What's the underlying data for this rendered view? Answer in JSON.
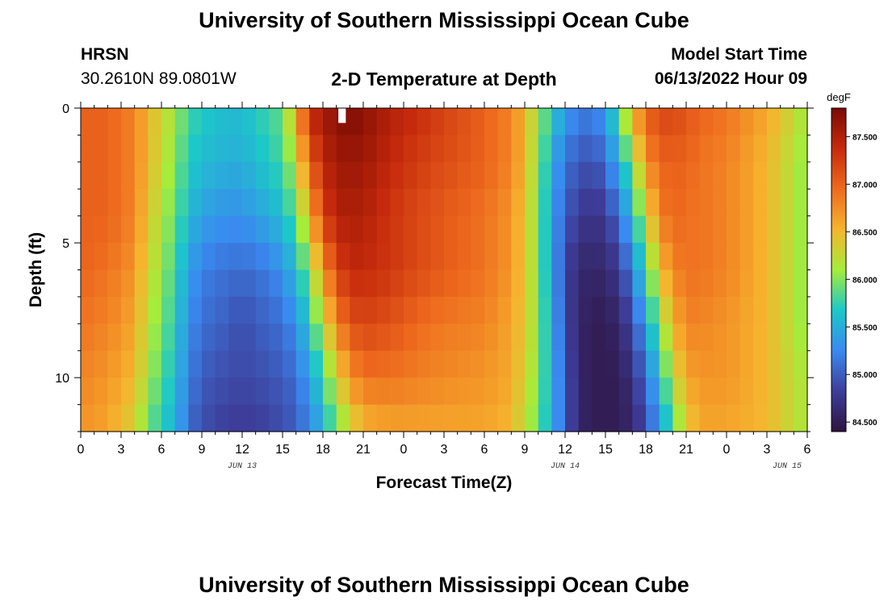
{
  "header": {
    "title": "University of Southern Mississippi Ocean Cube",
    "station": "HRSN",
    "coords": "30.2610N  89.0801W",
    "plot_title": "2-D Temperature at Depth",
    "start_label": "Model Start Time",
    "start_value": "06/13/2022 Hour 09"
  },
  "footer": {
    "title": "University of Southern Mississippi Ocean Cube"
  },
  "chart_data": {
    "type": "heatmap",
    "title": "2-D Temperature at Depth",
    "xlabel": "Forecast Time(Z)",
    "ylabel": "Depth (ft)",
    "x_tick_labels": [
      "0",
      "3",
      "6",
      "9",
      "12",
      "15",
      "18",
      "21",
      "0",
      "3",
      "6",
      "9",
      "12",
      "15",
      "18",
      "21",
      "0",
      "3",
      "6"
    ],
    "date_labels": [
      {
        "label": "JUN 13",
        "at_tick": 4
      },
      {
        "label": "JUN 14",
        "at_tick": 12
      },
      {
        "label": "JUN 15",
        "at_tick": 17.5
      }
    ],
    "y_ticks": [
      0,
      5,
      10
    ],
    "ylim": [
      0,
      12
    ],
    "y_inverted": true,
    "colorbar": {
      "unit": "degF",
      "min": 84.4,
      "max": 87.8,
      "tick_values": [
        84.5,
        85.0,
        85.5,
        86.0,
        86.5,
        87.0,
        87.5
      ],
      "tick_labels": [
        "84.500",
        "85.000",
        "85.500",
        "86.000",
        "86.500",
        "87.000",
        "87.500"
      ],
      "colors": [
        "#2e1440",
        "#3e3d9a",
        "#3a8af0",
        "#1cc8c8",
        "#a6ec3a",
        "#f6b42e",
        "#ee6a1e",
        "#c62a0c",
        "#7a0a04"
      ]
    },
    "hours_range": [
      0,
      54
    ],
    "depth_levels": [
      0,
      1,
      2,
      3,
      4,
      5,
      6,
      7,
      8,
      9,
      10,
      11
    ],
    "profile_hours": [
      0,
      2,
      4,
      5,
      7,
      8,
      9,
      11,
      12,
      13,
      15,
      16,
      17,
      18,
      19,
      20,
      21,
      23,
      26,
      30,
      32,
      33,
      34,
      35,
      36,
      37,
      38,
      39,
      40,
      41,
      42,
      43,
      44,
      45,
      46,
      48,
      51,
      54
    ],
    "profiles": [
      {
        "depth": 0,
        "values": [
          87.0,
          87.0,
          86.8,
          86.5,
          86.1,
          85.8,
          85.7,
          85.6,
          85.6,
          85.7,
          85.9,
          86.6,
          87.4,
          87.6,
          87.7,
          87.8,
          87.7,
          87.5,
          87.3,
          87.0,
          86.8,
          86.5,
          86.1,
          85.7,
          85.4,
          85.2,
          85.2,
          85.4,
          85.9,
          86.6,
          87.0,
          87.2,
          87.2,
          87.1,
          87.0,
          86.9,
          86.6,
          86.1
        ]
      },
      {
        "depth": 2,
        "values": [
          87.0,
          87.0,
          86.8,
          86.5,
          86.0,
          85.7,
          85.6,
          85.5,
          85.5,
          85.6,
          85.8,
          86.2,
          87.0,
          87.4,
          87.6,
          87.6,
          87.6,
          87.4,
          87.2,
          87.0,
          86.8,
          86.5,
          86.0,
          85.5,
          85.1,
          85.0,
          84.9,
          85.1,
          85.5,
          86.0,
          86.7,
          87.0,
          87.0,
          87.0,
          86.9,
          86.8,
          86.5,
          86.0
        ]
      },
      {
        "depth": 4,
        "values": [
          87.0,
          87.0,
          86.8,
          86.4,
          85.9,
          85.6,
          85.4,
          85.3,
          85.3,
          85.4,
          85.6,
          85.9,
          86.5,
          87.2,
          87.5,
          87.5,
          87.5,
          87.3,
          87.1,
          86.9,
          86.7,
          86.4,
          86.0,
          85.4,
          85.0,
          84.8,
          84.7,
          84.8,
          85.1,
          85.6,
          86.2,
          86.8,
          87.0,
          86.9,
          86.9,
          86.8,
          86.5,
          86.0
        ]
      },
      {
        "depth": 6,
        "values": [
          87.0,
          86.9,
          86.7,
          86.3,
          85.8,
          85.4,
          85.2,
          85.1,
          85.1,
          85.1,
          85.3,
          85.6,
          86.0,
          86.7,
          87.2,
          87.4,
          87.4,
          87.3,
          87.1,
          86.9,
          86.7,
          86.4,
          86.0,
          85.4,
          84.9,
          84.6,
          84.6,
          84.6,
          84.8,
          85.2,
          85.8,
          86.4,
          86.8,
          86.9,
          86.9,
          86.8,
          86.5,
          86.0
        ]
      },
      {
        "depth": 8,
        "values": [
          86.9,
          86.8,
          86.6,
          86.2,
          85.7,
          85.3,
          85.1,
          85.0,
          84.9,
          85.0,
          85.1,
          85.3,
          85.7,
          86.2,
          86.8,
          87.1,
          87.2,
          87.1,
          86.9,
          86.8,
          86.6,
          86.4,
          86.0,
          85.5,
          84.9,
          84.6,
          84.5,
          84.5,
          84.6,
          84.9,
          85.4,
          86.0,
          86.5,
          86.8,
          86.8,
          86.7,
          86.5,
          86.0
        ]
      },
      {
        "depth": 10,
        "values": [
          86.8,
          86.7,
          86.5,
          86.1,
          85.6,
          85.2,
          85.0,
          84.9,
          84.9,
          84.9,
          85.0,
          85.1,
          85.4,
          85.8,
          86.3,
          86.7,
          86.9,
          86.9,
          86.8,
          86.7,
          86.6,
          86.3,
          86.0,
          85.5,
          85.0,
          84.6,
          84.5,
          84.5,
          84.5,
          84.7,
          85.1,
          85.6,
          86.2,
          86.6,
          86.7,
          86.7,
          86.5,
          86.1
        ]
      },
      {
        "depth": 12,
        "values": [
          86.7,
          86.6,
          86.3,
          85.9,
          85.5,
          85.1,
          84.9,
          84.8,
          84.8,
          84.8,
          84.9,
          85.0,
          85.2,
          85.5,
          85.9,
          86.2,
          86.5,
          86.6,
          86.6,
          86.6,
          86.5,
          86.2,
          85.9,
          85.5,
          85.0,
          84.6,
          84.5,
          84.5,
          84.5,
          84.6,
          84.9,
          85.3,
          85.8,
          86.3,
          86.6,
          86.6,
          86.5,
          86.1
        ]
      }
    ],
    "missing_cells": [
      {
        "hour": 19,
        "depth": 0
      }
    ]
  }
}
